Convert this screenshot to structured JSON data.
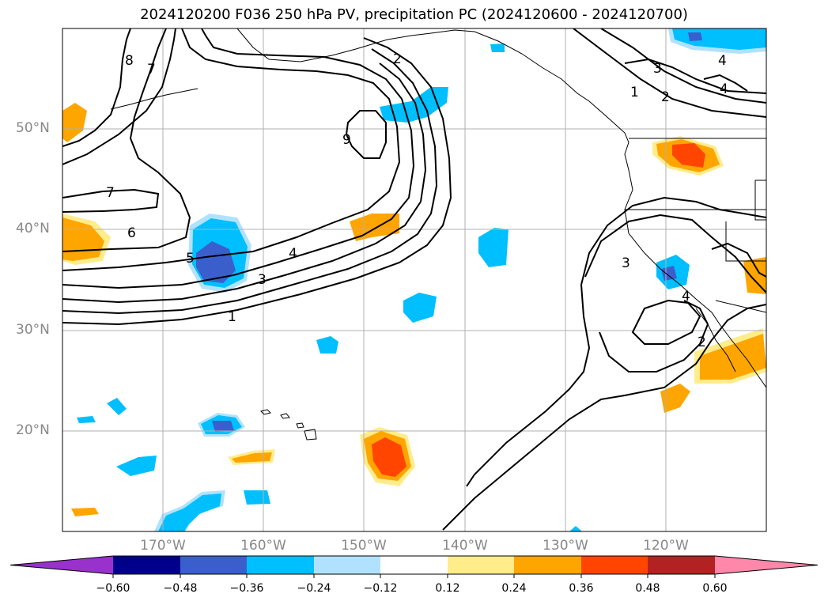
{
  "title": "2024120200 F036 250 hPa PV, precipitation PC (2024120600 - 2024120700)",
  "map": {
    "lon_range": [
      -180,
      -110
    ],
    "lat_range": [
      10,
      60
    ],
    "lat_labels": [
      "50°N",
      "40°N",
      "30°N",
      "20°N"
    ],
    "lon_labels": [
      "170°W",
      "160°W",
      "150°W",
      "140°W",
      "130°W",
      "120°W"
    ]
  },
  "contours": {
    "color": "#000000",
    "labels": [
      "8",
      "7",
      "2",
      "9",
      "7",
      "6",
      "5",
      "4",
      "3",
      "1",
      "1",
      "2",
      "3",
      "4",
      "3",
      "4",
      "2",
      "4"
    ]
  },
  "colorbar": {
    "ticks": [
      "−0.60",
      "−0.48",
      "−0.36",
      "−0.24",
      "−0.12",
      "0.12",
      "0.24",
      "0.36",
      "0.48",
      "0.60"
    ],
    "colors": [
      "#9932cc",
      "#00008b",
      "#3a5fcd",
      "#00bfff",
      "#b0e2ff",
      "#ffffff",
      "#ffec8b",
      "#ffa500",
      "#ff4500",
      "#b22222",
      "#ff88aa"
    ]
  }
}
